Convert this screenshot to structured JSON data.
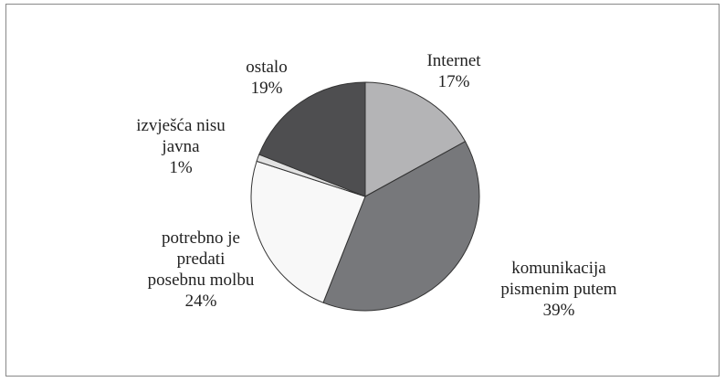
{
  "chart_data": {
    "type": "pie",
    "categories": [
      "Internet",
      "komunikacija\npismenim putem",
      "potrebno je\npredati\nposebnu molbu",
      "izvješća nisu\njavna",
      "ostalo"
    ],
    "values": [
      17,
      39,
      24,
      1,
      19
    ],
    "value_labels": [
      "17%",
      "39%",
      "24%",
      "1%",
      "19%"
    ],
    "colors": [
      "#b4b4b6",
      "#77787b",
      "#f8f8f8",
      "#e2e2e2",
      "#4e4e50"
    ]
  }
}
